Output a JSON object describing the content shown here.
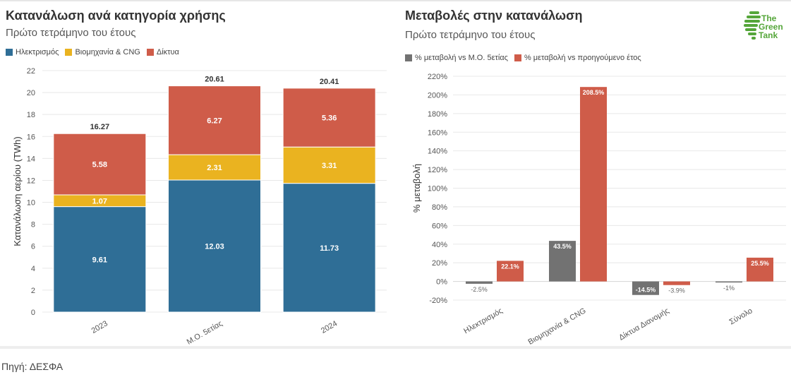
{
  "left": {
    "title": "Κατανάλωση ανά κατηγορία χρήσης",
    "subtitle": "Πρώτο τετράμηνο του έτους"
  },
  "right": {
    "title": "Μεταβολές στην κατανάλωση",
    "subtitle": "Πρώτο τετράμηνο του έτους"
  },
  "logo": {
    "line1": "The",
    "line2": "Green",
    "line3": "Tank",
    "icon": "green-leaf-globe-icon"
  },
  "source": "Πηγή: ΔΕΣΦΑ",
  "colors": {
    "electricity": "#2f6e96",
    "industry": "#eab320",
    "networks": "#cf5c49",
    "grey": "#727272",
    "red": "#cf5c49"
  },
  "chart_data": [
    {
      "type": "bar",
      "stacked": true,
      "categories": [
        "2023",
        "Μ.Ο. 5ετίας",
        "2024"
      ],
      "series": [
        {
          "name": "Ηλεκτρισμός",
          "values": [
            9.61,
            12.03,
            11.73
          ]
        },
        {
          "name": "Βιομηχανία & CNG",
          "values": [
            1.07,
            2.31,
            3.31
          ]
        },
        {
          "name": "Δίκτυα",
          "values": [
            5.58,
            6.27,
            5.36
          ]
        }
      ],
      "totals": [
        16.27,
        20.61,
        20.41
      ],
      "ylabel": "Κατανάλωση αερίου (TWh)",
      "ylim": [
        0,
        22
      ],
      "yticks": [
        0,
        2,
        4,
        6,
        8,
        10,
        12,
        14,
        16,
        18,
        20,
        22
      ],
      "legend_position": "top-left",
      "grid": true
    },
    {
      "type": "bar",
      "stacked": false,
      "categories": [
        "Ηλεκτρισμός",
        "Βιομηχανία & CNG",
        "Δίκτυα Διανομής",
        "Σύνολο"
      ],
      "series": [
        {
          "name": "% μεταβολή vs Μ.Ο. 5ετίας",
          "values": [
            -2.5,
            43.5,
            -14.5,
            -1
          ],
          "labels": [
            "-2.5%",
            "43.5%",
            "-14.5%",
            "-1%"
          ]
        },
        {
          "name": "% μεταβολή vs προηγούμενο έτος",
          "values": [
            22.1,
            208.5,
            -3.9,
            25.5
          ],
          "labels": [
            "22.1%",
            "208.5%",
            "-3.9%",
            "25.5%"
          ]
        }
      ],
      "ylabel": "% μεταβολή",
      "ylim": [
        -20,
        220
      ],
      "yticks": [
        -20,
        0,
        20,
        40,
        60,
        80,
        100,
        120,
        140,
        160,
        180,
        200,
        220
      ],
      "ytick_labels": [
        "-20%",
        "0%",
        "20%",
        "40%",
        "60%",
        "80%",
        "100%",
        "120%",
        "140%",
        "160%",
        "180%",
        "200%",
        "220%"
      ],
      "legend_position": "top-left",
      "grid": true
    }
  ]
}
